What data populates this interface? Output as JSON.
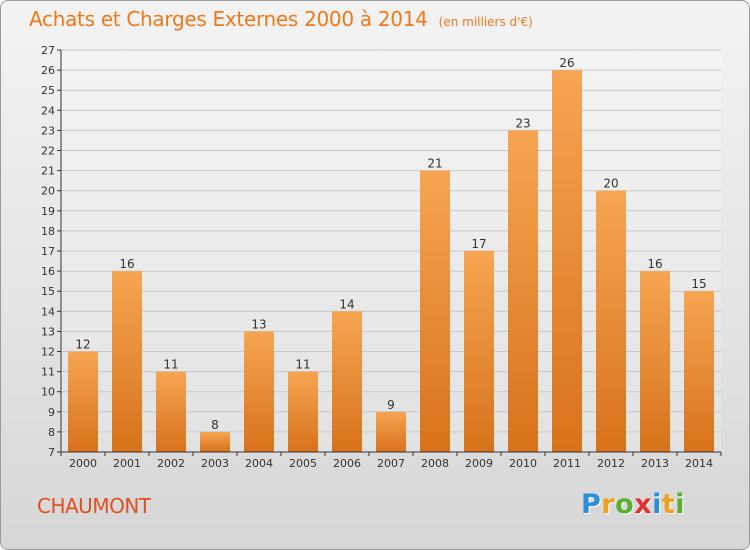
{
  "title": "Achats et Charges Externes 2000 à 2014",
  "unit": "(en milliers d'€)",
  "location": "CHAUMONT",
  "logo": {
    "text": "Proxiti",
    "letters": [
      "P",
      "r",
      "o",
      "x",
      "i",
      "t",
      "i"
    ],
    "letter_colors": [
      "#2a8fd8",
      "#f0a020",
      "#58b030",
      "#e03030",
      "#2a8fd8",
      "#f0a020",
      "#58b030"
    ]
  },
  "colors": {
    "bar_top": "#f6a552",
    "bar_bottom": "#d8721a",
    "title": "#f07818",
    "location": "#e05020",
    "grid": "#c8c8c8",
    "axis": "#333333"
  },
  "chart_data": {
    "type": "bar",
    "title": "Achats et Charges Externes 2000 à 2014",
    "subtitle": "(en milliers d'€)",
    "xlabel": "",
    "ylabel": "",
    "categories": [
      "2000",
      "2001",
      "2002",
      "2003",
      "2004",
      "2005",
      "2006",
      "2007",
      "2008",
      "2009",
      "2010",
      "2011",
      "2012",
      "2013",
      "2014"
    ],
    "values": [
      12,
      16,
      11,
      8,
      13,
      11,
      14,
      9,
      21,
      17,
      23,
      26,
      20,
      16,
      15
    ],
    "data_labels": [
      "12",
      "16",
      "11",
      "8",
      "13",
      "11",
      "14",
      "9",
      "21",
      "17",
      "23",
      "26",
      "20",
      "16",
      "15"
    ],
    "ylim": [
      7,
      27
    ],
    "yticks": [
      "7",
      "8",
      "9",
      "10",
      "11",
      "12",
      "13",
      "14",
      "15",
      "16",
      "17",
      "18",
      "19",
      "20",
      "21",
      "22",
      "23",
      "24",
      "25",
      "26",
      "27"
    ],
    "grid": true,
    "legend": "none"
  }
}
